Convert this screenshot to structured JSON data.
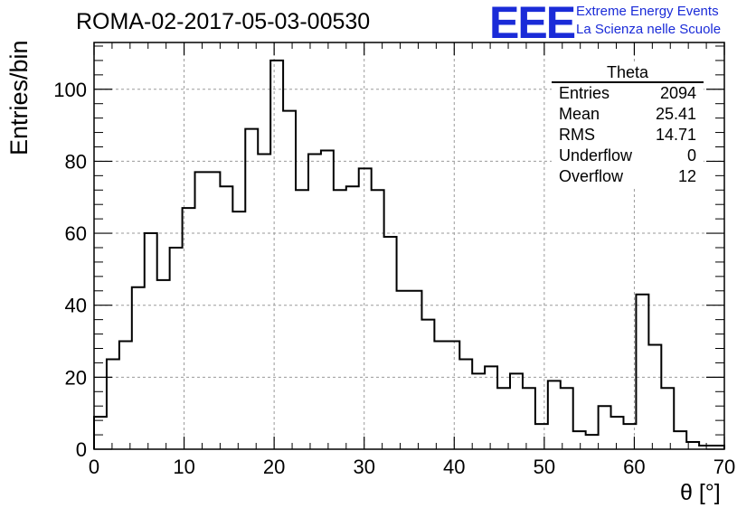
{
  "chart_data": {
    "type": "bar",
    "title": "ROMA-02-2017-05-03-00530",
    "xlabel": "θ [°]",
    "ylabel": "Entries/bin",
    "xlim": [
      0,
      70
    ],
    "ylim": [
      0,
      113
    ],
    "grid": true,
    "bin_width": 1.4,
    "x_ticks": [
      "0",
      "10",
      "20",
      "30",
      "40",
      "50",
      "60",
      "70"
    ],
    "y_ticks": [
      "0",
      "20",
      "40",
      "60",
      "80",
      "100"
    ],
    "values": [
      9,
      25,
      30,
      45,
      60,
      47,
      56,
      67,
      77,
      77,
      73,
      66,
      89,
      82,
      108,
      94,
      72,
      82,
      83,
      72,
      73,
      78,
      72,
      59,
      44,
      44,
      36,
      30,
      30,
      25,
      21,
      23,
      17,
      21,
      17,
      7,
      19,
      17,
      5,
      4,
      12,
      9,
      7,
      43,
      29,
      17,
      5,
      2,
      1,
      1
    ]
  },
  "stats_box": {
    "title": "Theta",
    "rows": [
      {
        "label": "Entries",
        "value": "2094"
      },
      {
        "label": "Mean",
        "value": "25.41"
      },
      {
        "label": "RMS",
        "value": "14.71"
      },
      {
        "label": "Underflow",
        "value": "0"
      },
      {
        "label": "Overflow",
        "value": "12"
      }
    ]
  },
  "branding": {
    "logo_text": "EEE",
    "line1": "Extreme Energy Events",
    "line2": "La Scienza nelle Scuole",
    "color": "#1a2bd8"
  }
}
